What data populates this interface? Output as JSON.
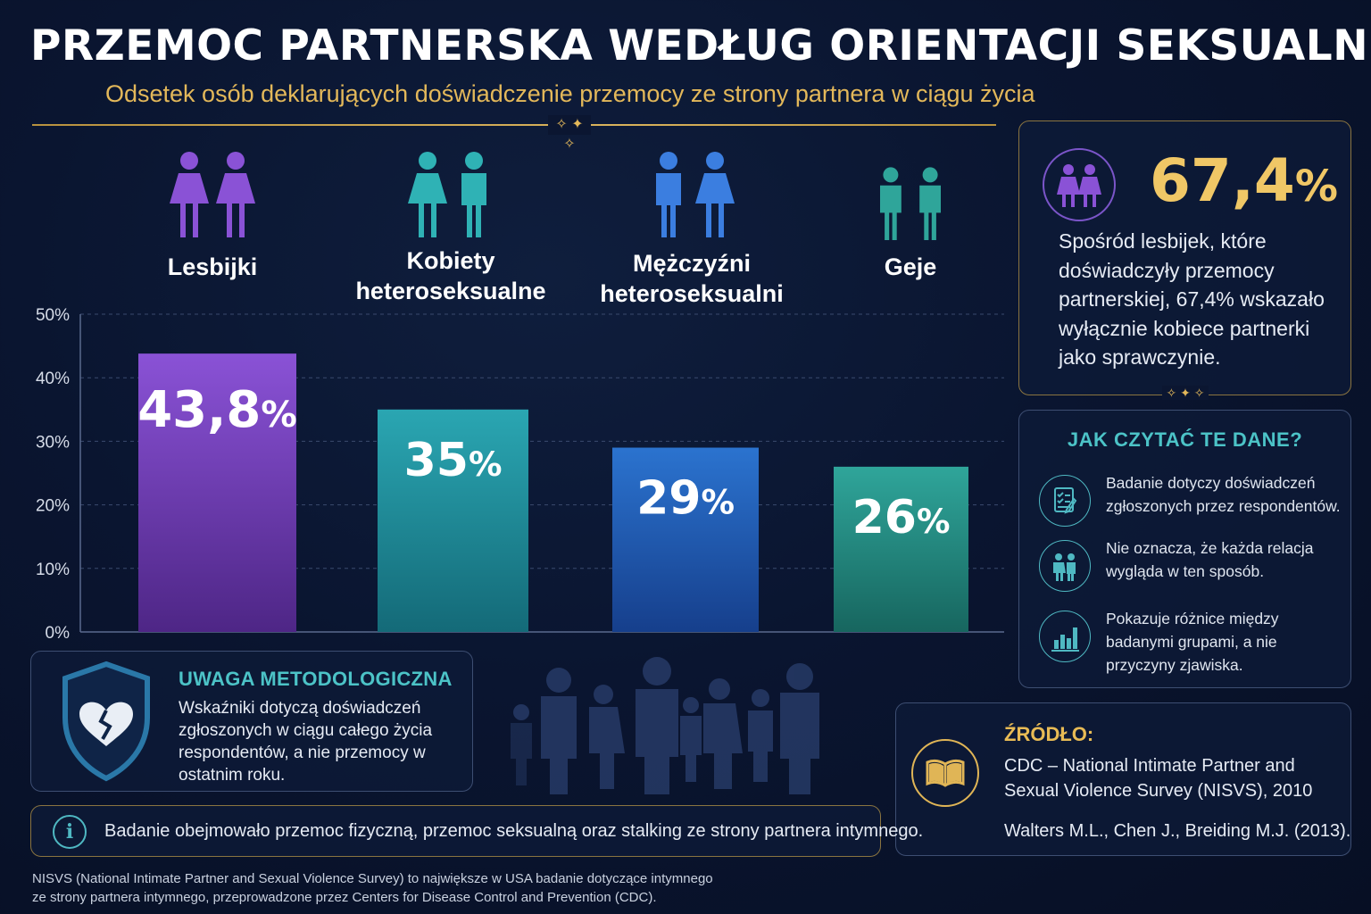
{
  "header": {
    "title": "PRZEMOC PARTNERSKA WEDŁUG ORIENTACJI SEKSUALNEJ",
    "subtitle": "Odsetek osób deklarujących doświadczenie przemocy ze strony partnera w ciągu życia"
  },
  "chart_data": {
    "type": "bar",
    "categories": [
      "Lesbijki",
      "Kobiety heteroseksualne",
      "Mężczyźni heteroseksualni",
      "Geje"
    ],
    "category_lines": [
      [
        "Lesbijki"
      ],
      [
        "Kobiety",
        "heteroseksualne"
      ],
      [
        "Mężczyźni",
        "heteroseksualni"
      ],
      [
        "Geje"
      ]
    ],
    "values": [
      43.8,
      35,
      29,
      26
    ],
    "value_labels": [
      "43,8",
      "35",
      "29",
      "26"
    ],
    "value_unit": "%",
    "yticks": [
      "0%",
      "10%",
      "20%",
      "30%",
      "40%",
      "50%"
    ],
    "ylim": [
      0,
      50
    ],
    "grid": true,
    "colors": [
      [
        "#8a52d6",
        "#4e2686"
      ],
      [
        "#2aa6b2",
        "#146a78"
      ],
      [
        "#2b73cf",
        "#163f8c"
      ],
      [
        "#2fa59a",
        "#17665f"
      ]
    ],
    "icon_colors": [
      "#8a52d6",
      "#2fb2b5",
      "#3b7ee0",
      "#2fa59a"
    ],
    "icon_names": [
      "two-women-icon",
      "woman-man-icon",
      "man-woman-icon",
      "two-men-icon"
    ]
  },
  "highlight": {
    "value": "67,4",
    "unit": "%",
    "text": "Spośród lesbijek, które doświadczyły przemocy partnerskiej, 67,4% wskazało wyłącznie kobiece partnerki jako sprawczynie."
  },
  "how_to_read": {
    "heading": "JAK CZYTAĆ TE DANE?",
    "items": [
      {
        "icon": "checklist-icon",
        "text": "Badanie dotyczy doświadczeń zgłoszonych przez respondentów."
      },
      {
        "icon": "people-icon",
        "text": "Nie oznacza, że każda relacja wygląda w ten sposób."
      },
      {
        "icon": "bar-chart-icon",
        "text": "Pokazuje różnice między badanymi grupami, a nie przyczyny zjawiska."
      }
    ]
  },
  "method_note": {
    "heading": "UWAGA METODOLOGICZNA",
    "text": "Wskaźniki dotyczą doświadczeń zgłoszonych w ciągu całego życia respondentów, a nie przemocy w ostatnim roku."
  },
  "info_bar": {
    "icon": "info-icon",
    "text": "Badanie obejmowało przemoc fizyczną, przemoc seksualną oraz stalking ze strony partnera intymnego."
  },
  "source": {
    "heading": "ŹRÓDŁO:",
    "text": "CDC – National Intimate Partner and Sexual Violence Survey (NISVS), 2010",
    "reference": "Walters M.L., Chen J., Breiding M.J. (2013)."
  },
  "footnote": "NISVS (National Intimate Partner and Sexual Violence Survey) to największe w USA badanie dotyczące intymnego ze strony partnera intymnego, przeprowadzone przez Centers for Disease Control and Prevention (CDC)."
}
